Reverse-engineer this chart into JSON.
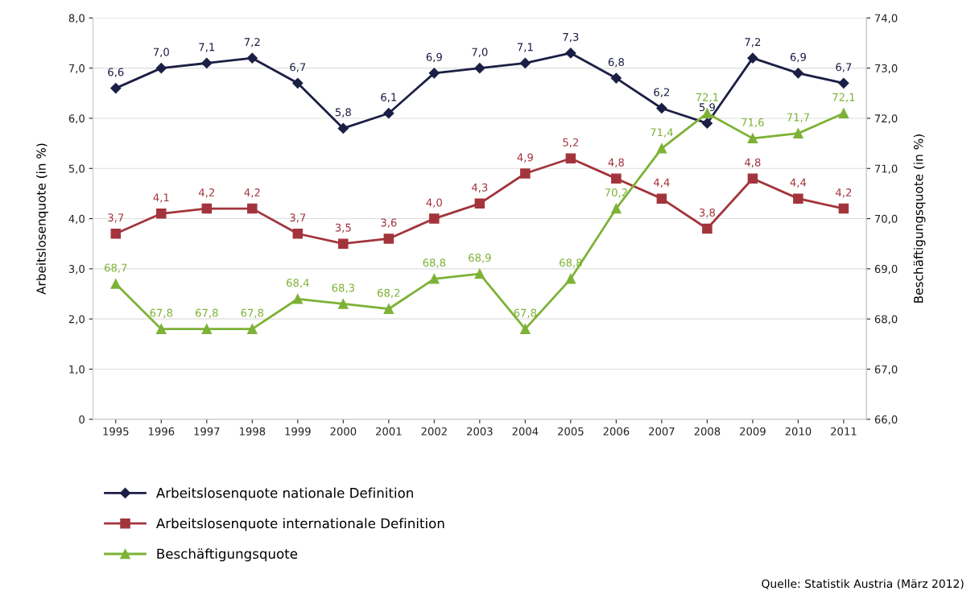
{
  "chart_data": {
    "type": "line",
    "categories": [
      "1995",
      "1996",
      "1997",
      "1998",
      "1999",
      "2000",
      "2001",
      "2002",
      "2003",
      "2004",
      "2005",
      "2006",
      "2007",
      "2008",
      "2009",
      "2010",
      "2011"
    ],
    "ylabel": "Arbeitslosenquote (in %)",
    "y2label": "Beschäftigungsquote (in %)",
    "ylim": [
      0,
      8
    ],
    "yticks": [
      0,
      {
        "value": 1,
        "label": "1,0"
      },
      {
        "value": 2,
        "label": "2,0"
      },
      {
        "value": 3,
        "label": "3,0"
      },
      {
        "value": 4,
        "label": "4,0"
      },
      {
        "value": 5,
        "label": "5,0"
      },
      {
        "value": 6,
        "label": "6,0"
      },
      {
        "value": 7,
        "label": "7,0"
      },
      {
        "value": 8,
        "label": "8,0"
      }
    ],
    "y2lim": [
      66,
      74
    ],
    "y2ticks": [
      {
        "value": 66,
        "label": "66,0"
      },
      {
        "value": 67,
        "label": "67,0"
      },
      {
        "value": 68,
        "label": "68,0"
      },
      {
        "value": 69,
        "label": "69,0"
      },
      {
        "value": 70,
        "label": "70,0"
      },
      {
        "value": 71,
        "label": "71,0"
      },
      {
        "value": 72,
        "label": "72,0"
      },
      {
        "value": 73,
        "label": "73,0"
      },
      {
        "value": 74,
        "label": "74,0"
      }
    ],
    "grid": "y",
    "legend": "bottom left",
    "line_style": "solid",
    "series": [
      {
        "name": "Arbeitslosenquote nationale Definition",
        "color": "#1c1f45",
        "marker": "diamond",
        "values": [
          6.6,
          7.0,
          7.1,
          7.2,
          6.7,
          5.8,
          6.1,
          6.9,
          7.0,
          7.1,
          7.3,
          6.8,
          6.2,
          5.9,
          7.2,
          6.9,
          6.7
        ],
        "value_labels": [
          "6,6",
          "7,0",
          "7,1",
          "7,2",
          "6,7",
          "5,8",
          "6,1",
          "6,9",
          "7,0",
          "7,1",
          "7,3",
          "6,8",
          "6,2",
          "5,9",
          "7,2",
          "6,9",
          "6,7"
        ]
      },
      {
        "name": "Arbeitslosenquote internationale Definition",
        "color": "#a3343c",
        "marker": "square",
        "values": [
          3.7,
          4.1,
          4.2,
          4.2,
          3.7,
          3.5,
          3.6,
          4.0,
          4.3,
          4.9,
          5.2,
          4.8,
          4.4,
          3.8,
          4.8,
          4.4,
          4.2
        ],
        "value_labels": [
          "3,7",
          "4,1",
          "4,2",
          "4,2",
          "3,7",
          "3,5",
          "3,6",
          "4,0",
          "4,3",
          "4,9",
          "5,2",
          "4,8",
          "4,4",
          "3,8",
          "4,8",
          "4,4",
          "4,2"
        ]
      },
      {
        "name": "Beschäftigungsquote",
        "color": "#7db236",
        "marker": "triangle",
        "axis": "y2",
        "values": [
          68.7,
          67.8,
          67.8,
          67.8,
          68.4,
          68.3,
          68.2,
          68.8,
          68.9,
          67.8,
          68.8,
          70.2,
          71.4,
          72.1,
          71.6,
          71.7,
          72.1
        ],
        "value_labels": [
          "68,7",
          "67,8",
          "67,8",
          "67,8",
          "68,4",
          "68,3",
          "68,2",
          "68,8",
          "68,9",
          "67,8",
          "68,8",
          "70,2",
          "71,4",
          "72,1",
          "71,6",
          "71,7",
          "72,1"
        ]
      }
    ],
    "annotations": [
      "Quelle: Statistik Austria (März 2012)"
    ]
  }
}
